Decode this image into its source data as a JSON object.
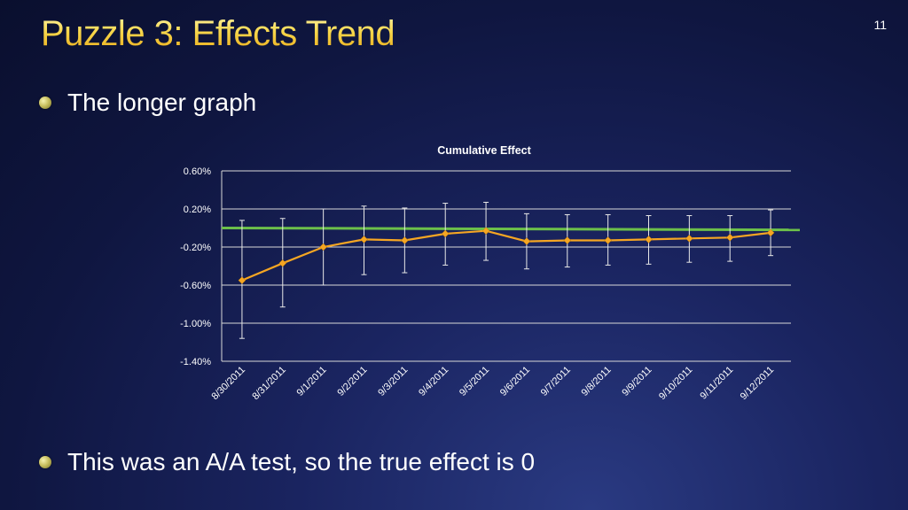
{
  "slide": {
    "title": "Puzzle 3: Effects Trend",
    "number": "11",
    "bullets": [
      "The longer graph",
      "This was an A/A test, so the true effect is 0"
    ]
  },
  "colors": {
    "title_gold": "#f7d64a",
    "series_line": "#f5a623",
    "zero_line": "#6cc04a",
    "background": "#111a4a"
  },
  "chart_data": {
    "type": "line",
    "title": "Cumulative Effect",
    "xlabel": "",
    "ylabel": "",
    "ylim": [
      -1.4,
      0.6
    ],
    "yticks": [
      0.6,
      0.2,
      -0.2,
      -0.6,
      -1.0,
      -1.4
    ],
    "ytick_labels": [
      "0.60%",
      "0.20%",
      "-0.20%",
      "-0.60%",
      "-1.00%",
      "-1.40%"
    ],
    "categories": [
      "8/30/2011",
      "8/31/2011",
      "9/1/2011",
      "9/2/2011",
      "9/3/2011",
      "9/4/2011",
      "9/5/2011",
      "9/6/2011",
      "9/7/2011",
      "9/8/2011",
      "9/9/2011",
      "9/10/2011",
      "9/11/2011",
      "9/12/2011"
    ],
    "series": [
      {
        "values": [
          -0.55,
          -0.37,
          -0.2,
          -0.12,
          -0.13,
          -0.06,
          -0.03,
          -0.14,
          -0.13,
          -0.13,
          -0.12,
          -0.11,
          -0.1,
          -0.05
        ],
        "error_upper": [
          0.08,
          0.1,
          0.2,
          0.23,
          0.21,
          0.26,
          0.27,
          0.15,
          0.14,
          0.14,
          0.13,
          0.13,
          0.13,
          0.19
        ],
        "error_lower": [
          -1.16,
          -0.83,
          -0.6,
          -0.49,
          -0.47,
          -0.39,
          -0.34,
          -0.43,
          -0.41,
          -0.39,
          -0.38,
          -0.36,
          -0.35,
          -0.29
        ]
      }
    ],
    "reference_line": {
      "y_start": 0.0,
      "y_end": -0.02
    },
    "grid": true,
    "legend": "none"
  }
}
